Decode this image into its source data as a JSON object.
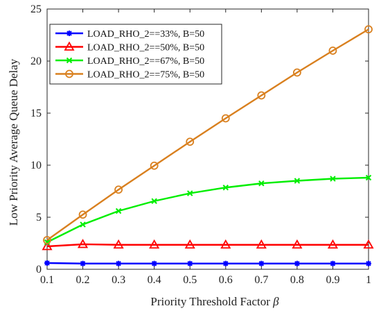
{
  "chart_data": {
    "type": "line",
    "xlabel": "Priority Threshold Factor",
    "xlabel_symbol": "β",
    "ylabel": "Low Priority Average Queue Delay",
    "xlim": [
      0.1,
      1
    ],
    "ylim": [
      0,
      25
    ],
    "x_ticks": [
      "0.1",
      "0.2",
      "0.3",
      "0.4",
      "0.5",
      "0.6",
      "0.7",
      "0.8",
      "0.9",
      "1"
    ],
    "y_ticks": [
      "0",
      "5",
      "10",
      "15",
      "20",
      "25"
    ],
    "x": [
      0.1,
      0.2,
      0.3,
      0.4,
      0.5,
      0.6,
      0.7,
      0.8,
      0.9,
      1.0
    ],
    "grid": false,
    "legend_position": "top-left",
    "series": [
      {
        "name": "LOAD_RHO_2==33%, B=50",
        "color": "#0000ff",
        "marker": "star",
        "values": [
          0.6,
          0.55,
          0.55,
          0.55,
          0.55,
          0.55,
          0.55,
          0.55,
          0.55,
          0.55
        ]
      },
      {
        "name": "LOAD_RHO_2==50%, B=50",
        "color": "#ff0000",
        "marker": "triangle",
        "values": [
          2.2,
          2.4,
          2.35,
          2.35,
          2.35,
          2.35,
          2.35,
          2.35,
          2.35,
          2.35
        ]
      },
      {
        "name": "LOAD_RHO_2==67%, B=50",
        "color": "#00ee00",
        "marker": "x",
        "values": [
          2.6,
          4.3,
          5.6,
          6.55,
          7.3,
          7.85,
          8.25,
          8.5,
          8.7,
          8.8
        ]
      },
      {
        "name": "LOAD_RHO_2==75%, B=50",
        "color": "#d9801f",
        "marker": "circle",
        "values": [
          2.8,
          5.25,
          7.65,
          9.95,
          12.25,
          14.5,
          16.7,
          18.9,
          21.0,
          23.05
        ]
      }
    ]
  }
}
